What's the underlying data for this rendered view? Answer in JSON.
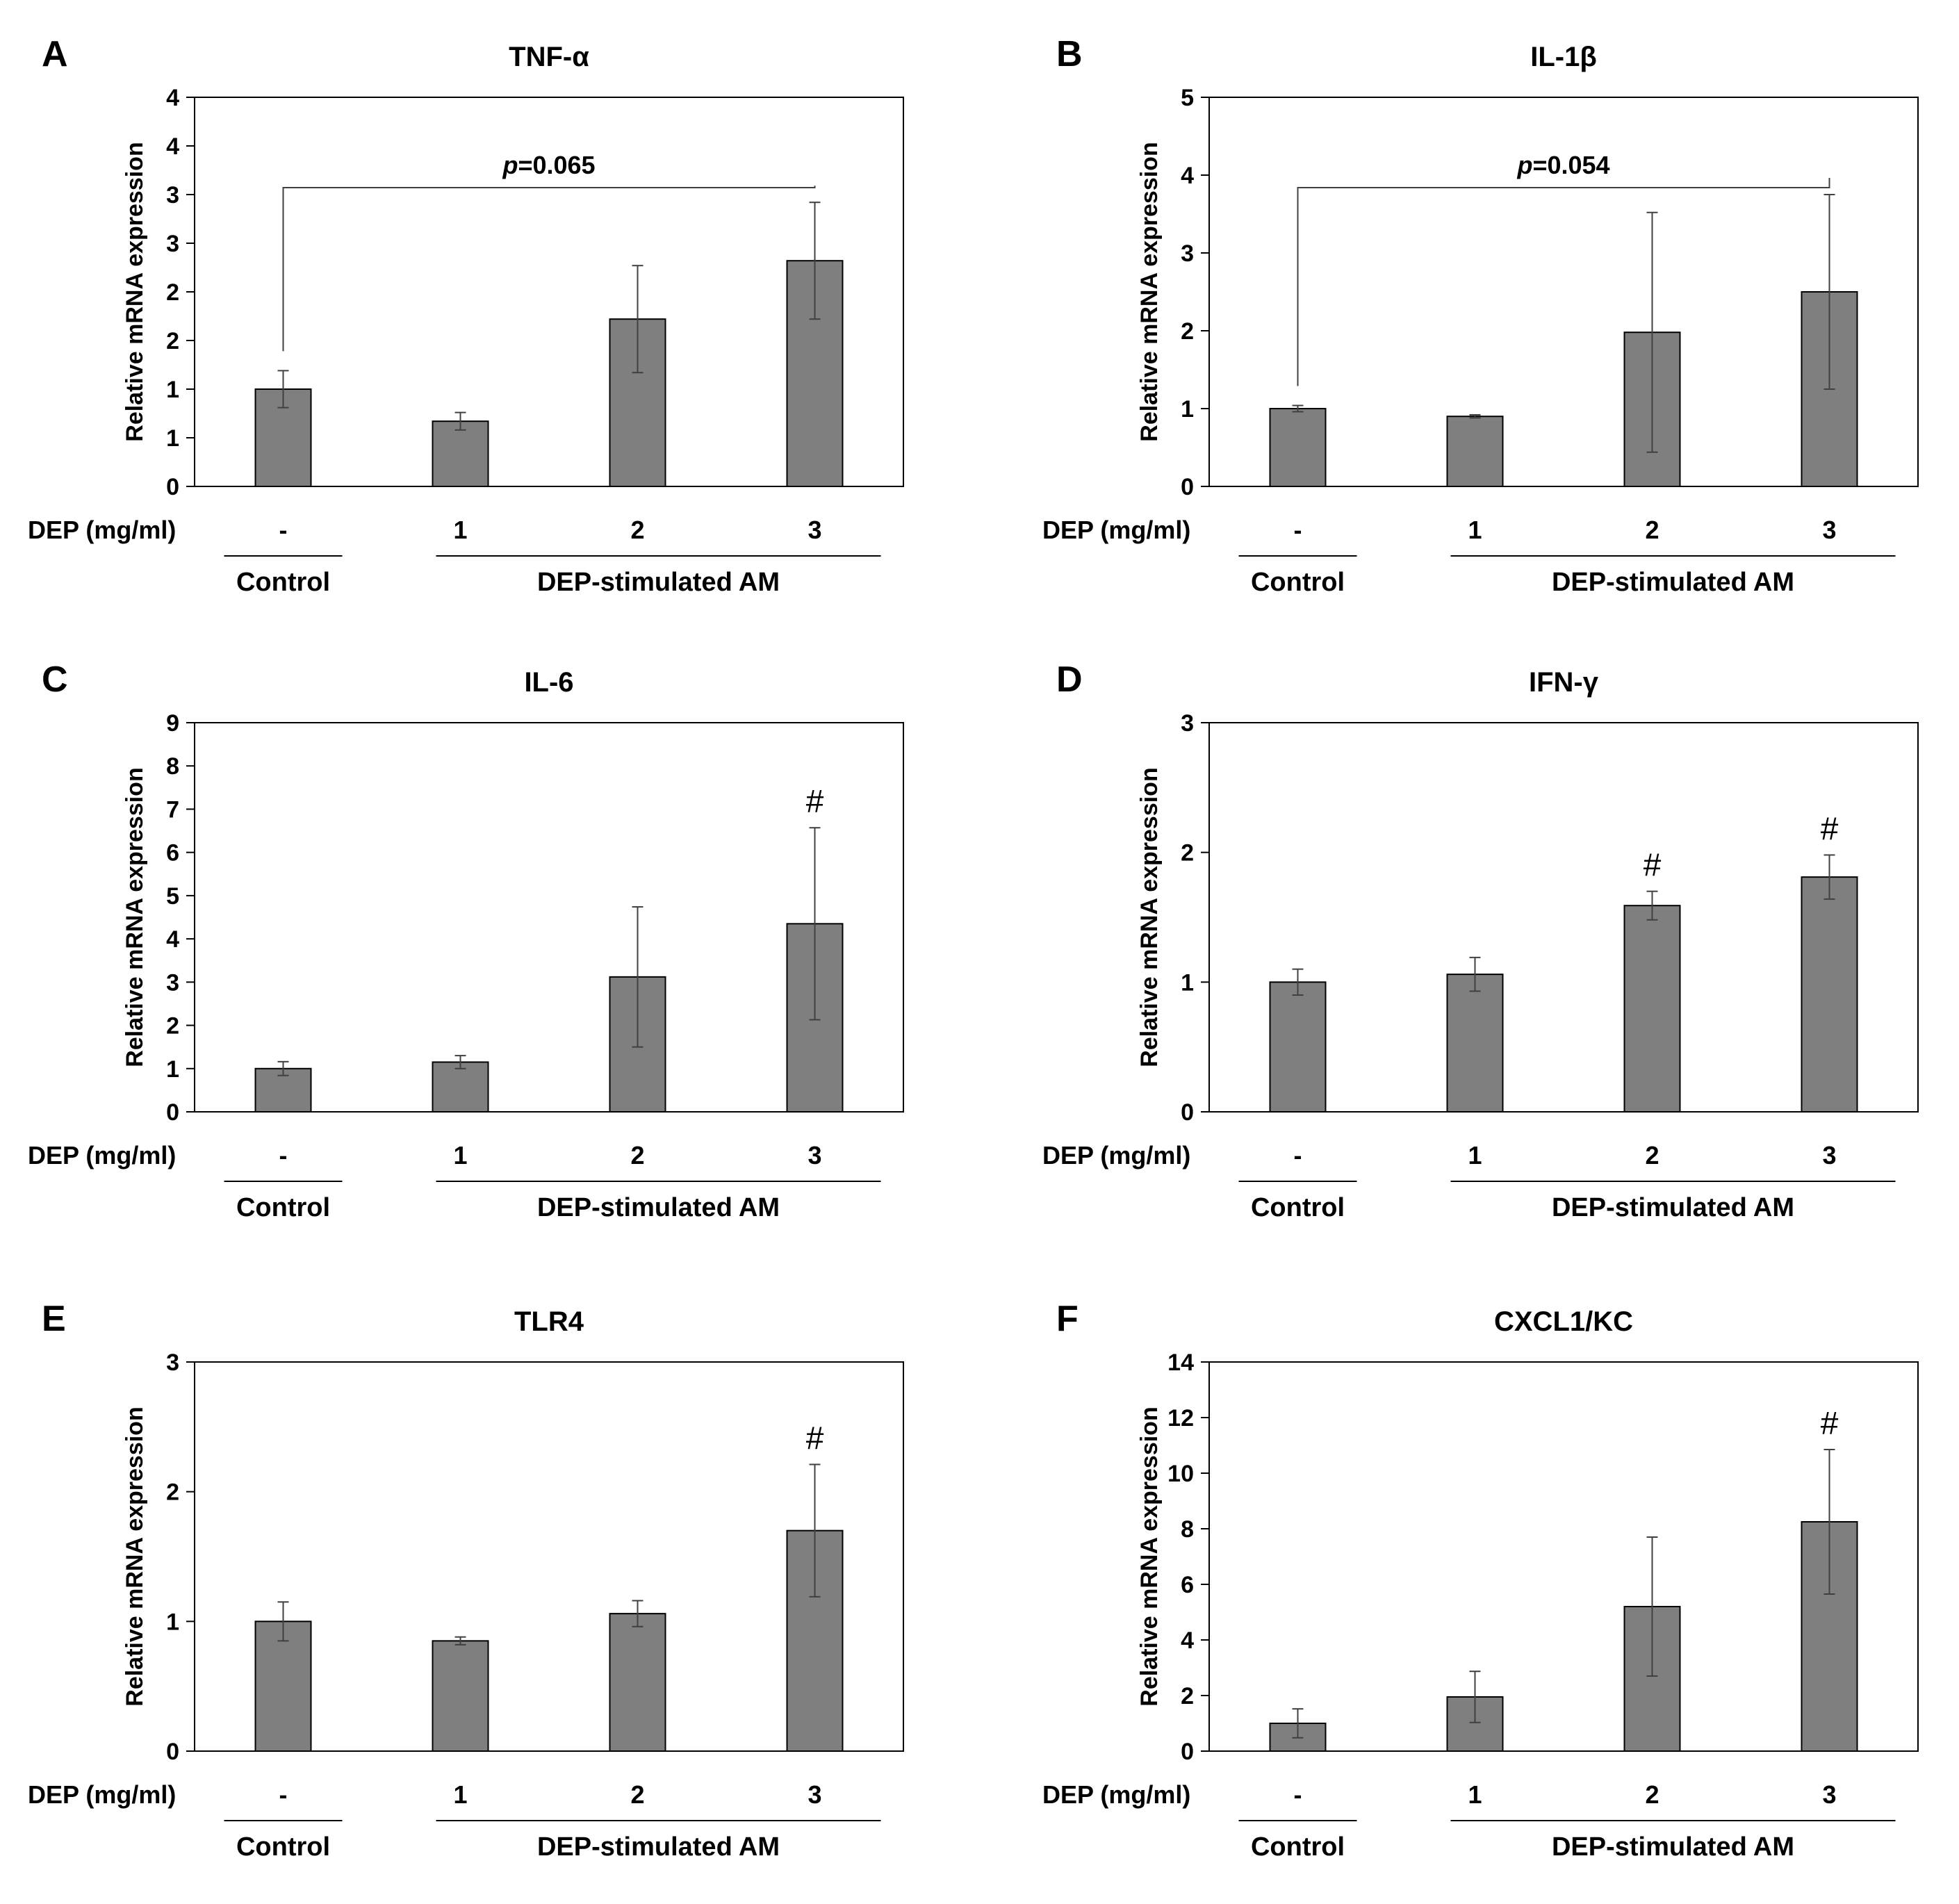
{
  "figure": {
    "x_row_label": "DEP (mg/ml)",
    "control_group_label": "Control",
    "treated_group_label": "DEP-stimulated AM"
  },
  "colors": {
    "bar_fill": "#7f7f7f",
    "bar_stroke": "#000000",
    "axis": "#000000",
    "error_bar": "#404040"
  },
  "chart_data": [
    {
      "panel": "A",
      "type": "bar",
      "title": "TNF-α",
      "categories": [
        "-",
        "1",
        "2",
        "3"
      ],
      "values": [
        1.0,
        0.67,
        1.72,
        2.32
      ],
      "errors": [
        0.19,
        0.09,
        0.55,
        0.6
      ],
      "ylabel": "Relative mRNA expression",
      "ylim": [
        0,
        4
      ],
      "yticks": [
        0,
        0.5,
        1,
        1.5,
        2,
        2.5,
        3,
        3.5,
        4
      ],
      "ytick_labels": [
        "0",
        "1",
        "1",
        "2",
        "2",
        "3",
        "3",
        "4",
        "4"
      ],
      "annotations": [],
      "comparison": {
        "from": 0,
        "to": 3,
        "text_italic": "p",
        "text": "=0.065"
      }
    },
    {
      "panel": "B",
      "type": "bar",
      "title": "IL-1β",
      "categories": [
        "-",
        "1",
        "2",
        "3"
      ],
      "values": [
        1.0,
        0.9,
        1.98,
        2.5
      ],
      "errors": [
        0.04,
        0.02,
        1.54,
        1.25
      ],
      "ylabel": "Relative mRNA expression",
      "ylim": [
        0,
        5
      ],
      "yticks": [
        0,
        1,
        2,
        3,
        4,
        5
      ],
      "ytick_labels": [
        "0",
        "1",
        "2",
        "3",
        "4",
        "5"
      ],
      "annotations": [],
      "comparison": {
        "from": 0,
        "to": 3,
        "text_italic": "p",
        "text": "=0.054"
      }
    },
    {
      "panel": "C",
      "type": "bar",
      "title": "IL-6",
      "categories": [
        "-",
        "1",
        "2",
        "3"
      ],
      "values": [
        1.0,
        1.15,
        3.12,
        4.35
      ],
      "errors": [
        0.16,
        0.15,
        1.62,
        2.22
      ],
      "ylabel": "Relative mRNA expression",
      "ylim": [
        0,
        9
      ],
      "yticks": [
        0,
        1,
        2,
        3,
        4,
        5,
        6,
        7,
        8,
        9
      ],
      "ytick_labels": [
        "0",
        "1",
        "2",
        "3",
        "4",
        "5",
        "6",
        "7",
        "8",
        "9"
      ],
      "annotations": [
        {
          "index": 3,
          "text": "#"
        }
      ],
      "comparison": null
    },
    {
      "panel": "D",
      "type": "bar",
      "title": "IFN-γ",
      "categories": [
        "-",
        "1",
        "2",
        "3"
      ],
      "values": [
        1.0,
        1.06,
        1.59,
        1.81
      ],
      "errors": [
        0.1,
        0.13,
        0.11,
        0.17
      ],
      "ylabel": "Relative mRNA expression",
      "ylim": [
        0,
        3
      ],
      "yticks": [
        0,
        1,
        2,
        3
      ],
      "ytick_labels": [
        "0",
        "1",
        "2",
        "3"
      ],
      "annotations": [
        {
          "index": 2,
          "text": "#"
        },
        {
          "index": 3,
          "text": "#"
        }
      ],
      "comparison": null
    },
    {
      "panel": "E",
      "type": "bar",
      "title": "TLR4",
      "categories": [
        "-",
        "1",
        "2",
        "3"
      ],
      "values": [
        1.0,
        0.85,
        1.06,
        1.7
      ],
      "errors": [
        0.15,
        0.03,
        0.1,
        0.51
      ],
      "ylabel": "Relative mRNA expression",
      "ylim": [
        0,
        3
      ],
      "yticks": [
        0,
        1,
        2,
        3
      ],
      "ytick_labels": [
        "0",
        "1",
        "2",
        "3"
      ],
      "annotations": [
        {
          "index": 3,
          "text": "#"
        }
      ],
      "comparison": null
    },
    {
      "panel": "F",
      "type": "bar",
      "title": "CXCL1/KC",
      "categories": [
        "-",
        "1",
        "2",
        "3"
      ],
      "values": [
        1.0,
        1.95,
        5.2,
        8.25
      ],
      "errors": [
        0.52,
        0.92,
        2.5,
        2.6
      ],
      "ylabel": "Relative mRNA expression",
      "ylim": [
        0,
        14
      ],
      "yticks": [
        0,
        2,
        4,
        6,
        8,
        10,
        12,
        14
      ],
      "ytick_labels": [
        "0",
        "2",
        "4",
        "6",
        "8",
        "10",
        "12",
        "14"
      ],
      "annotations": [
        {
          "index": 3,
          "text": "#"
        }
      ],
      "comparison": null
    }
  ]
}
